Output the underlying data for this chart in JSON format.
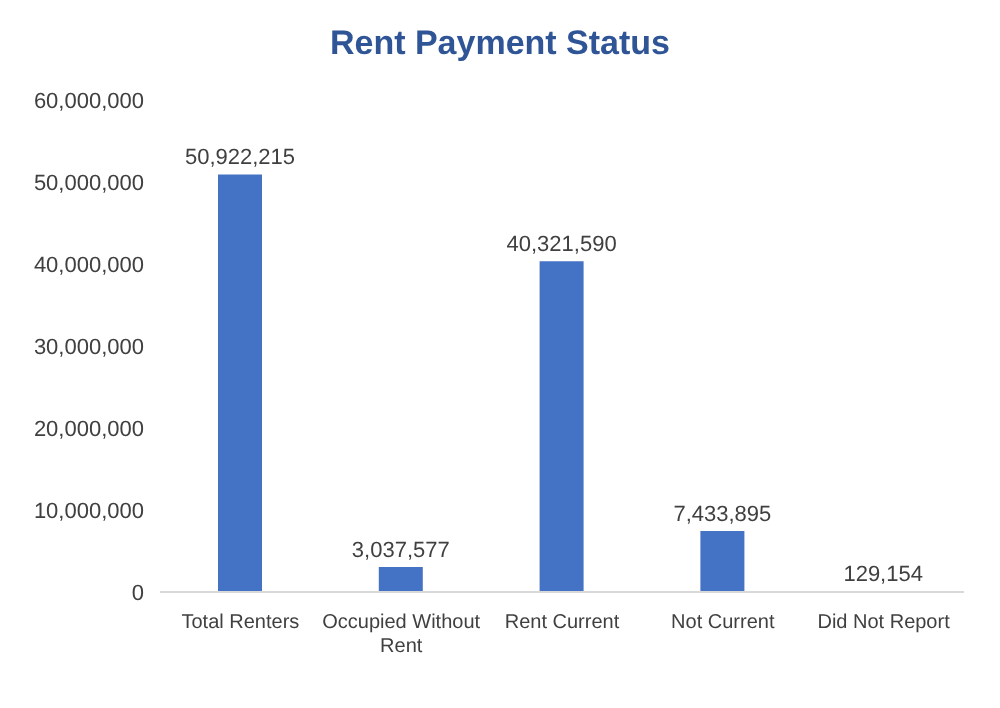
{
  "chart_data": {
    "type": "bar",
    "title": "Rent Payment Status",
    "categories": [
      "Total Renters",
      "Occupied Without Rent",
      "Rent Current",
      "Not Current",
      "Did Not Report"
    ],
    "values": [
      50922215,
      3037577,
      40321590,
      7433895,
      129154
    ],
    "value_labels": [
      "50,922,215",
      "3,037,577",
      "40,321,590",
      "7,433,895",
      "129,154"
    ],
    "color": "#4472c4",
    "ylim": [
      0,
      60000000
    ],
    "yticks": [
      {
        "value": 0,
        "label": "0"
      },
      {
        "value": 10000000,
        "label": "10,000,000"
      },
      {
        "value": 20000000,
        "label": "20,000,000"
      },
      {
        "value": 30000000,
        "label": "30,000,000"
      },
      {
        "value": 40000000,
        "label": "40,000,000"
      },
      {
        "value": 50000000,
        "label": "50,000,000"
      },
      {
        "value": 60000000,
        "label": "60,000,000"
      }
    ],
    "grid": false,
    "legend": false
  }
}
